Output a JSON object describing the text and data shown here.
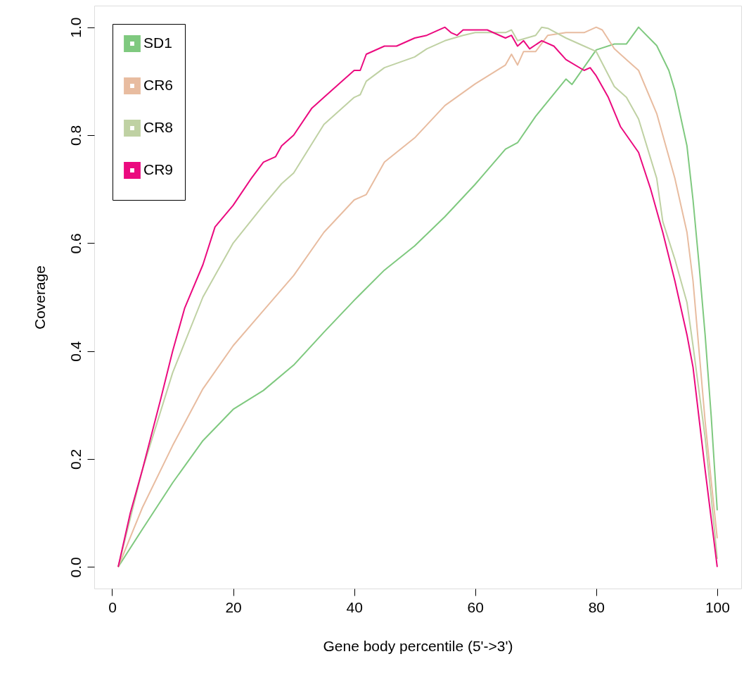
{
  "chart_data": {
    "type": "line",
    "xlabel": "Gene body percentile (5'->3')",
    "ylabel": "Coverage",
    "xlim": [
      -2.96,
      103.96
    ],
    "ylim": [
      -0.04,
      1.04
    ],
    "xticks": [
      0,
      20,
      40,
      60,
      80,
      100
    ],
    "yticks": [
      {
        "value": 0,
        "label": "0.0"
      },
      {
        "value": 0.2,
        "label": "0.2"
      },
      {
        "value": 0.4,
        "label": "0.4"
      },
      {
        "value": 0.6,
        "label": "0.6"
      },
      {
        "value": 0.8,
        "label": "0.8"
      },
      {
        "value": 1,
        "label": "1.0"
      }
    ],
    "grid": false,
    "legend": "top left",
    "marker": "none",
    "line_style": "solid",
    "series": [
      {
        "name": "SD1",
        "color": "#7fc97f",
        "x": [
          1,
          5,
          10,
          15,
          20,
          25,
          30,
          35,
          40,
          45,
          50,
          55,
          60,
          65,
          67,
          70,
          75,
          76,
          80,
          83,
          85,
          87,
          90,
          92,
          93,
          95,
          96,
          97,
          98,
          99,
          100
        ],
        "values": [
          0,
          0.07,
          0.156,
          0.234,
          0.292,
          0.327,
          0.374,
          0.435,
          0.494,
          0.55,
          0.595,
          0.649,
          0.709,
          0.774,
          0.786,
          0.835,
          0.904,
          0.894,
          0.958,
          0.969,
          0.969,
          1.0,
          0.966,
          0.92,
          0.883,
          0.78,
          0.68,
          0.56,
          0.43,
          0.28,
          0.105
        ]
      },
      {
        "name": "CR6",
        "color": "#e8bca0",
        "x": [
          1,
          5,
          10,
          15,
          20,
          25,
          30,
          35,
          40,
          42,
          45,
          50,
          55,
          60,
          65,
          66,
          67,
          68,
          70,
          72,
          75,
          78,
          80,
          81,
          83,
          85,
          87,
          90,
          93,
          95,
          96,
          97,
          98,
          99,
          100
        ],
        "values": [
          0,
          0.11,
          0.225,
          0.33,
          0.41,
          0.475,
          0.54,
          0.62,
          0.68,
          0.69,
          0.75,
          0.795,
          0.855,
          0.895,
          0.93,
          0.95,
          0.93,
          0.955,
          0.955,
          0.985,
          0.99,
          0.99,
          1.0,
          0.995,
          0.96,
          0.94,
          0.92,
          0.84,
          0.72,
          0.62,
          0.53,
          0.4,
          0.27,
          0.16,
          0.053
        ]
      },
      {
        "name": "CR8",
        "color": "#bfd1a3",
        "x": [
          1,
          5,
          10,
          15,
          20,
          25,
          28,
          30,
          35,
          40,
          41,
          42,
          45,
          50,
          52,
          55,
          58,
          60,
          65,
          66,
          67,
          70,
          71,
          72,
          75,
          78,
          80,
          83,
          85,
          87,
          90,
          91,
          93,
          95,
          96,
          98,
          99,
          100
        ],
        "values": [
          0,
          0.18,
          0.36,
          0.5,
          0.6,
          0.67,
          0.71,
          0.73,
          0.82,
          0.87,
          0.875,
          0.9,
          0.925,
          0.945,
          0.96,
          0.975,
          0.985,
          0.99,
          0.99,
          0.995,
          0.975,
          0.985,
          1.0,
          0.998,
          0.98,
          0.965,
          0.955,
          0.89,
          0.87,
          0.83,
          0.72,
          0.64,
          0.57,
          0.49,
          0.41,
          0.24,
          0.13,
          0.015
        ]
      },
      {
        "name": "CR9",
        "color": "#eb0a7f",
        "x": [
          1,
          3,
          5,
          8,
          10,
          12,
          15,
          17,
          20,
          23,
          25,
          27,
          28,
          30,
          33,
          35,
          38,
          40,
          41,
          42,
          45,
          47,
          50,
          52,
          55,
          56,
          57,
          58,
          60,
          62,
          65,
          66,
          67,
          68,
          69,
          71,
          73,
          75,
          78,
          79,
          80,
          82,
          84,
          85,
          87,
          89,
          91,
          93,
          95,
          96,
          98,
          99,
          100
        ],
        "values": [
          0,
          0.1,
          0.18,
          0.31,
          0.4,
          0.48,
          0.56,
          0.63,
          0.67,
          0.72,
          0.75,
          0.76,
          0.78,
          0.8,
          0.85,
          0.87,
          0.9,
          0.92,
          0.92,
          0.95,
          0.965,
          0.965,
          0.98,
          0.985,
          1.0,
          0.99,
          0.985,
          0.995,
          0.995,
          0.995,
          0.98,
          0.985,
          0.965,
          0.975,
          0.96,
          0.975,
          0.965,
          0.94,
          0.92,
          0.925,
          0.91,
          0.87,
          0.816,
          0.8,
          0.768,
          0.7,
          0.62,
          0.53,
          0.43,
          0.37,
          0.18,
          0.09,
          0
        ]
      }
    ]
  }
}
